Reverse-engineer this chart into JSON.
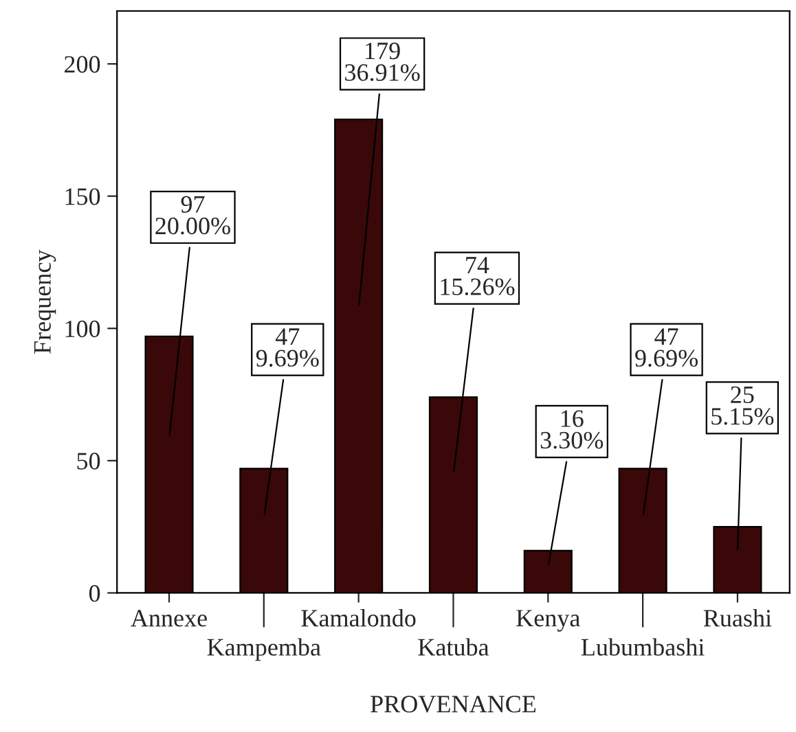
{
  "chart_data": {
    "type": "bar",
    "xlabel": "PROVENANCE",
    "ylabel": "Frequency",
    "categories": [
      "Annexe",
      "Kampemba",
      "Kamalondo",
      "Katuba",
      "Kenya",
      "Lubumbashi",
      "Ruashi"
    ],
    "values": [
      97,
      47,
      179,
      74,
      16,
      47,
      25
    ],
    "value_labels": [
      "97\n20.00%",
      "47\n9.69%",
      "179\n36.91%",
      "74\n15.26%",
      "16\n3.30%",
      "47\n9.69%",
      "25\n5.15%"
    ],
    "color": "#3a0808",
    "ylim": [
      0,
      220
    ],
    "yticks": [
      0,
      50,
      100,
      150,
      200
    ],
    "grid": false,
    "legend": false
  }
}
